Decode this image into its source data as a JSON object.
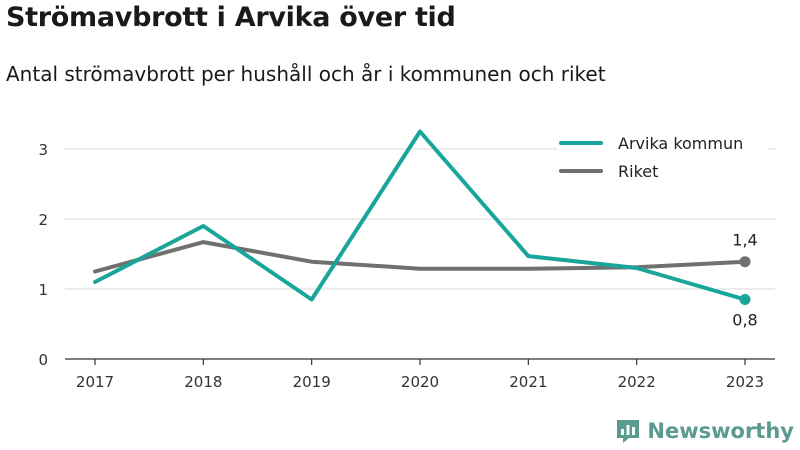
{
  "title": "Strömavbrott i Arvika över tid",
  "subtitle": "Antal strömavbrott per hushåll och år i kommunen och riket",
  "brand": "Newsworthy",
  "colors": {
    "arvika": "#1aa59a",
    "riket": "#707070",
    "grid": "#d9d9d9",
    "axis": "#333333"
  },
  "chart_data": {
    "type": "line",
    "categories": [
      "2017",
      "2018",
      "2019",
      "2020",
      "2021",
      "2022",
      "2023"
    ],
    "ylim": [
      0,
      3.5
    ],
    "yticks": [
      0,
      1,
      2,
      3
    ],
    "grid": true,
    "legend_position": "top-right",
    "series": [
      {
        "name": "Arvika kommun",
        "values": [
          1.1,
          1.9,
          0.85,
          3.25,
          1.47,
          1.3,
          0.85
        ],
        "end_label": "0,8"
      },
      {
        "name": "Riket",
        "values": [
          1.25,
          1.67,
          1.39,
          1.29,
          1.29,
          1.31,
          1.39
        ],
        "end_label": "1,4"
      }
    ]
  }
}
